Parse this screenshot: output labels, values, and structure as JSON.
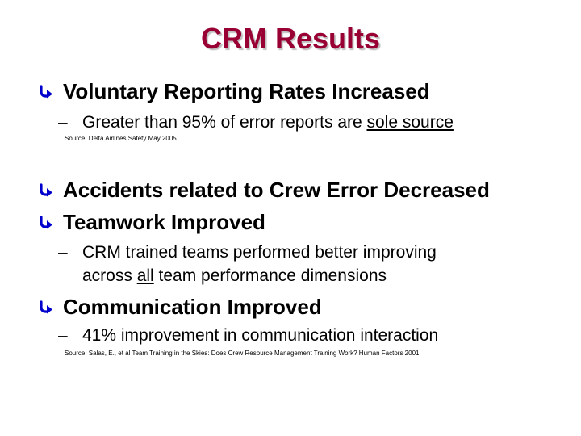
{
  "slide": {
    "title": "CRM Results",
    "accent_color": "#990033",
    "bullet_icon": "curved-arrow-icon",
    "b1": {
      "text": "Voluntary Reporting Rates Increased",
      "sub1_pre": "Greater than 95% of error reports are ",
      "sub1_ul": "sole source",
      "source": "Source: Delta Airlines Safety May 2005."
    },
    "b2": {
      "text": "Accidents related to Crew Error  Decreased"
    },
    "b3": {
      "text": "Teamwork Improved",
      "sub1_line1": "CRM trained teams performed better improving",
      "sub1_line2_pre": "across ",
      "sub1_line2_ul": "all",
      "sub1_line2_post": " team performance dimensions"
    },
    "b4": {
      "text": "Communication Improved",
      "sub1": "41% improvement in communication interaction",
      "source": "Source: Salas, E., et al Team Training in the Skies: Does Crew Resource Management Training Work? Human Factors 2001."
    },
    "dash": "–"
  }
}
